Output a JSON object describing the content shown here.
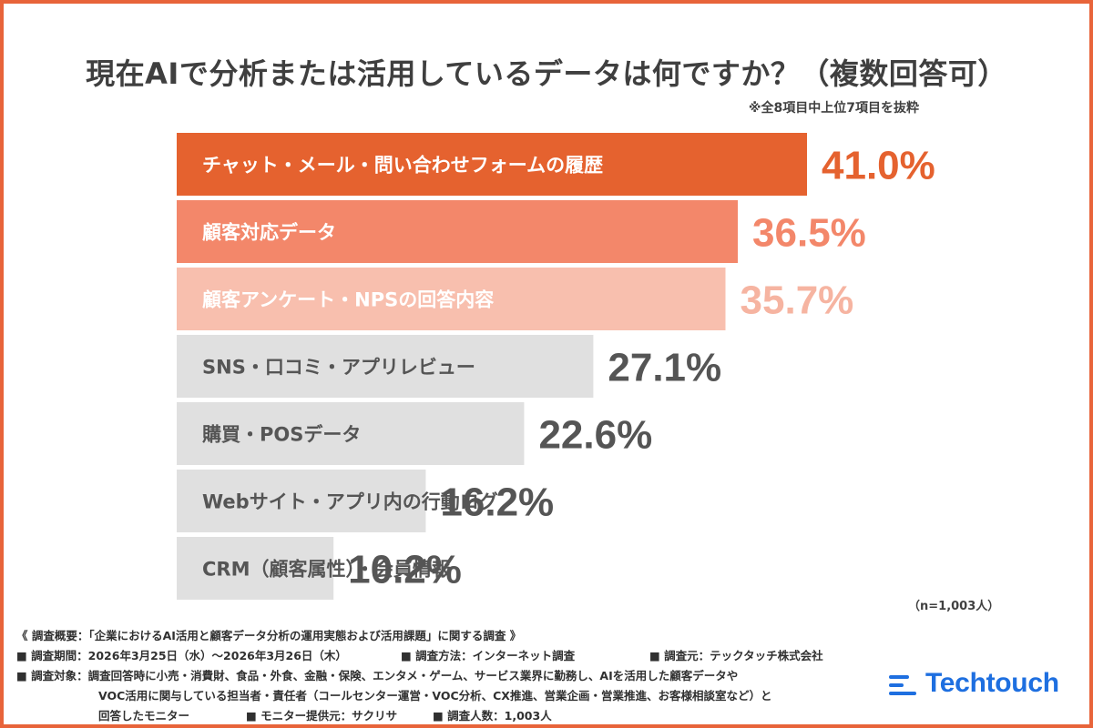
{
  "title": "現在AIで分析または活用しているデータは何ですか？（複数回答可）",
  "note": "※全8項目中上位7項目を抜粋",
  "sample_note": "（n=1,003人）",
  "chart_data": {
    "type": "bar",
    "orientation": "horizontal",
    "categories": [
      "チャット・メール・問い合わせフォームの履歴",
      "顧客対応データ",
      "顧客アンケート・NPSの回答内容",
      "SNS・口コミ・アプリレビュー",
      "購買・POSデータ",
      "Webサイト・アプリ内の行動ログ",
      "CRM（顧客属性）・会員情報"
    ],
    "values": [
      41.0,
      36.5,
      35.7,
      27.1,
      22.6,
      16.2,
      10.2
    ],
    "value_labels": [
      "41.0%",
      "36.5%",
      "35.7%",
      "27.1%",
      "22.6%",
      "16.2%",
      "10.2%"
    ],
    "bar_colors": [
      "#e5622f",
      "#f3876a",
      "#f8bfae",
      "#e0e0e0",
      "#e0e0e0",
      "#e0e0e0",
      "#e0e0e0"
    ],
    "label_colors": [
      "#ffffff",
      "#ffffff",
      "#ffffff",
      "#555555",
      "#555555",
      "#555555",
      "#555555"
    ],
    "value_colors": [
      "#e5622f",
      "#f3876a",
      "#f6b4a1",
      "#555555",
      "#555555",
      "#555555",
      "#555555"
    ],
    "xlim": [
      0,
      41.0
    ],
    "grid": false,
    "legend": "none"
  },
  "footer": {
    "overview": "《 調査概要：「企業におけるAI活用と顧客データ分析の運用実態および活用課題」に関する調査 》",
    "period": "■ 調査期間：2026年3月25日（水）〜2026年3月26日（木）",
    "method": "■ 調査方法：インターネット調査",
    "source": "■ 調査元：テックタッチ株式会社",
    "target_1": "■ 調査対象：調査回答時に小売・消費財、食品・外食、金融・保険、エンタメ・ゲーム、サービス業界に勤務し、AIを活用した顧客データや",
    "target_2": "VOC活用に関与している担当者・責任者（コールセンター運営・VOC分析、CX推進、営業企画・営業推進、お客様相談室など）と",
    "target_3": "回答したモニター",
    "provider": "■ モニター提供元：サクリサ",
    "respondents": "■ 調査人数：1,003人"
  },
  "logo": {
    "text": "Techtouch",
    "color": "#1e6fe0",
    "icon": "techtouch-logo-icon"
  }
}
